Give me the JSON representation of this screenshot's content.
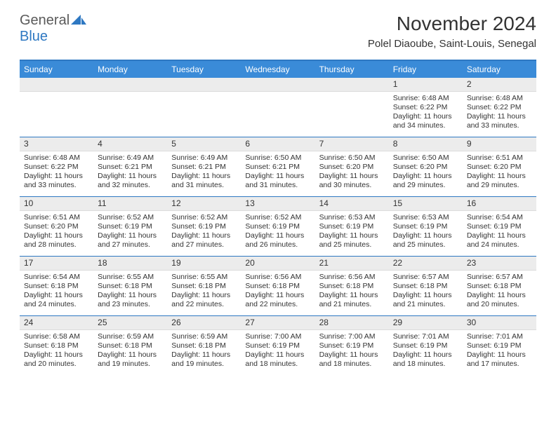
{
  "brand": {
    "part1": "General",
    "part2": "Blue"
  },
  "title": "November 2024",
  "location": "Polel Diaoube, Saint-Louis, Senegal",
  "colors": {
    "header_bg": "#3a8bd8",
    "border": "#2e78c2",
    "daynum_bg": "#ececec",
    "text": "#333333",
    "brand_gray": "#5a5a5a",
    "brand_blue": "#2e78c2"
  },
  "dayNames": [
    "Sunday",
    "Monday",
    "Tuesday",
    "Wednesday",
    "Thursday",
    "Friday",
    "Saturday"
  ],
  "weeks": [
    [
      {
        "n": "",
        "lines": []
      },
      {
        "n": "",
        "lines": []
      },
      {
        "n": "",
        "lines": []
      },
      {
        "n": "",
        "lines": []
      },
      {
        "n": "",
        "lines": []
      },
      {
        "n": "1",
        "lines": [
          "Sunrise: 6:48 AM",
          "Sunset: 6:22 PM",
          "Daylight: 11 hours",
          "and 34 minutes."
        ]
      },
      {
        "n": "2",
        "lines": [
          "Sunrise: 6:48 AM",
          "Sunset: 6:22 PM",
          "Daylight: 11 hours",
          "and 33 minutes."
        ]
      }
    ],
    [
      {
        "n": "3",
        "lines": [
          "Sunrise: 6:48 AM",
          "Sunset: 6:22 PM",
          "Daylight: 11 hours",
          "and 33 minutes."
        ]
      },
      {
        "n": "4",
        "lines": [
          "Sunrise: 6:49 AM",
          "Sunset: 6:21 PM",
          "Daylight: 11 hours",
          "and 32 minutes."
        ]
      },
      {
        "n": "5",
        "lines": [
          "Sunrise: 6:49 AM",
          "Sunset: 6:21 PM",
          "Daylight: 11 hours",
          "and 31 minutes."
        ]
      },
      {
        "n": "6",
        "lines": [
          "Sunrise: 6:50 AM",
          "Sunset: 6:21 PM",
          "Daylight: 11 hours",
          "and 31 minutes."
        ]
      },
      {
        "n": "7",
        "lines": [
          "Sunrise: 6:50 AM",
          "Sunset: 6:20 PM",
          "Daylight: 11 hours",
          "and 30 minutes."
        ]
      },
      {
        "n": "8",
        "lines": [
          "Sunrise: 6:50 AM",
          "Sunset: 6:20 PM",
          "Daylight: 11 hours",
          "and 29 minutes."
        ]
      },
      {
        "n": "9",
        "lines": [
          "Sunrise: 6:51 AM",
          "Sunset: 6:20 PM",
          "Daylight: 11 hours",
          "and 29 minutes."
        ]
      }
    ],
    [
      {
        "n": "10",
        "lines": [
          "Sunrise: 6:51 AM",
          "Sunset: 6:20 PM",
          "Daylight: 11 hours",
          "and 28 minutes."
        ]
      },
      {
        "n": "11",
        "lines": [
          "Sunrise: 6:52 AM",
          "Sunset: 6:19 PM",
          "Daylight: 11 hours",
          "and 27 minutes."
        ]
      },
      {
        "n": "12",
        "lines": [
          "Sunrise: 6:52 AM",
          "Sunset: 6:19 PM",
          "Daylight: 11 hours",
          "and 27 minutes."
        ]
      },
      {
        "n": "13",
        "lines": [
          "Sunrise: 6:52 AM",
          "Sunset: 6:19 PM",
          "Daylight: 11 hours",
          "and 26 minutes."
        ]
      },
      {
        "n": "14",
        "lines": [
          "Sunrise: 6:53 AM",
          "Sunset: 6:19 PM",
          "Daylight: 11 hours",
          "and 25 minutes."
        ]
      },
      {
        "n": "15",
        "lines": [
          "Sunrise: 6:53 AM",
          "Sunset: 6:19 PM",
          "Daylight: 11 hours",
          "and 25 minutes."
        ]
      },
      {
        "n": "16",
        "lines": [
          "Sunrise: 6:54 AM",
          "Sunset: 6:19 PM",
          "Daylight: 11 hours",
          "and 24 minutes."
        ]
      }
    ],
    [
      {
        "n": "17",
        "lines": [
          "Sunrise: 6:54 AM",
          "Sunset: 6:18 PM",
          "Daylight: 11 hours",
          "and 24 minutes."
        ]
      },
      {
        "n": "18",
        "lines": [
          "Sunrise: 6:55 AM",
          "Sunset: 6:18 PM",
          "Daylight: 11 hours",
          "and 23 minutes."
        ]
      },
      {
        "n": "19",
        "lines": [
          "Sunrise: 6:55 AM",
          "Sunset: 6:18 PM",
          "Daylight: 11 hours",
          "and 22 minutes."
        ]
      },
      {
        "n": "20",
        "lines": [
          "Sunrise: 6:56 AM",
          "Sunset: 6:18 PM",
          "Daylight: 11 hours",
          "and 22 minutes."
        ]
      },
      {
        "n": "21",
        "lines": [
          "Sunrise: 6:56 AM",
          "Sunset: 6:18 PM",
          "Daylight: 11 hours",
          "and 21 minutes."
        ]
      },
      {
        "n": "22",
        "lines": [
          "Sunrise: 6:57 AM",
          "Sunset: 6:18 PM",
          "Daylight: 11 hours",
          "and 21 minutes."
        ]
      },
      {
        "n": "23",
        "lines": [
          "Sunrise: 6:57 AM",
          "Sunset: 6:18 PM",
          "Daylight: 11 hours",
          "and 20 minutes."
        ]
      }
    ],
    [
      {
        "n": "24",
        "lines": [
          "Sunrise: 6:58 AM",
          "Sunset: 6:18 PM",
          "Daylight: 11 hours",
          "and 20 minutes."
        ]
      },
      {
        "n": "25",
        "lines": [
          "Sunrise: 6:59 AM",
          "Sunset: 6:18 PM",
          "Daylight: 11 hours",
          "and 19 minutes."
        ]
      },
      {
        "n": "26",
        "lines": [
          "Sunrise: 6:59 AM",
          "Sunset: 6:18 PM",
          "Daylight: 11 hours",
          "and 19 minutes."
        ]
      },
      {
        "n": "27",
        "lines": [
          "Sunrise: 7:00 AM",
          "Sunset: 6:19 PM",
          "Daylight: 11 hours",
          "and 18 minutes."
        ]
      },
      {
        "n": "28",
        "lines": [
          "Sunrise: 7:00 AM",
          "Sunset: 6:19 PM",
          "Daylight: 11 hours",
          "and 18 minutes."
        ]
      },
      {
        "n": "29",
        "lines": [
          "Sunrise: 7:01 AM",
          "Sunset: 6:19 PM",
          "Daylight: 11 hours",
          "and 18 minutes."
        ]
      },
      {
        "n": "30",
        "lines": [
          "Sunrise: 7:01 AM",
          "Sunset: 6:19 PM",
          "Daylight: 11 hours",
          "and 17 minutes."
        ]
      }
    ]
  ]
}
